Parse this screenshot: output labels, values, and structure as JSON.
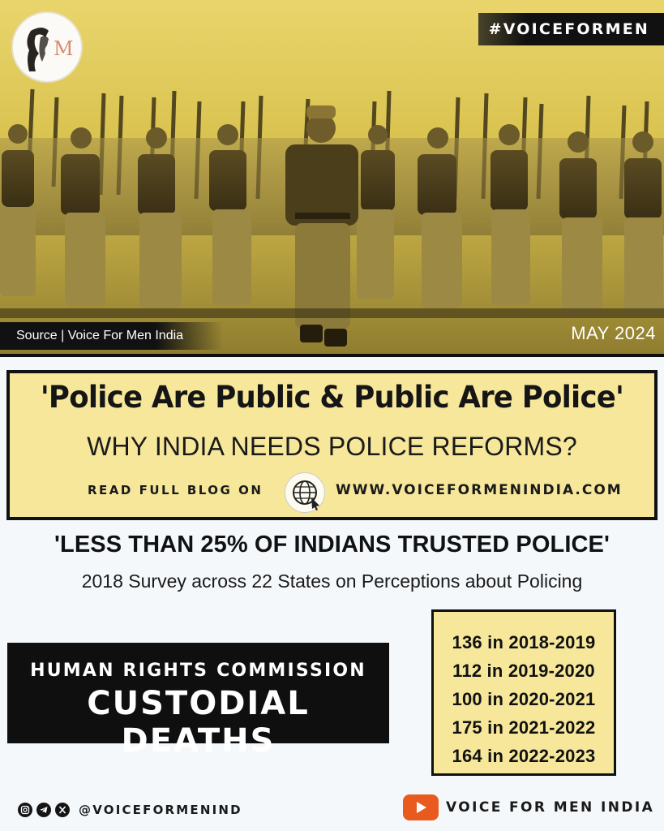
{
  "hero": {
    "tag": "#VOICEFORMEN",
    "source": "Source | Voice For Men India",
    "date": "MAY 2024",
    "logo_letter": "M"
  },
  "title": {
    "main": "'Police Are Public & Public Are Police'",
    "sub": "WHY INDIA NEEDS POLICE REFORMS?",
    "read_label": "READ FULL BLOG ON",
    "site": "WWW.VOICEFORMENINDIA.COM"
  },
  "trust": {
    "headline": "'LESS THAN 25% OF INDIANS TRUSTED POLICE'",
    "subline": "2018 Survey across 22 States on Perceptions about Policing"
  },
  "nhrc": {
    "line1": "HUMAN RIGHTS COMMISSION",
    "line2": "CUSTODIAL DEATHS"
  },
  "deaths": [
    "136 in 2018-2019",
    "112 in 2019-2020",
    "100 in 2020-2021",
    "175 in 2021-2022",
    "164 in 2022-2023"
  ],
  "footer": {
    "social_icons": [
      "instagram-icon",
      "telegram-icon",
      "x-icon"
    ],
    "handle": "@VOICEFORMENIND",
    "channel": "VOICE FOR MEN INDIA"
  },
  "colors": {
    "panel_yellow": "#f6e79a",
    "hero_tint": "#d9c24f",
    "dark": "#0f0f0f",
    "youtube": "#e85a1e"
  }
}
